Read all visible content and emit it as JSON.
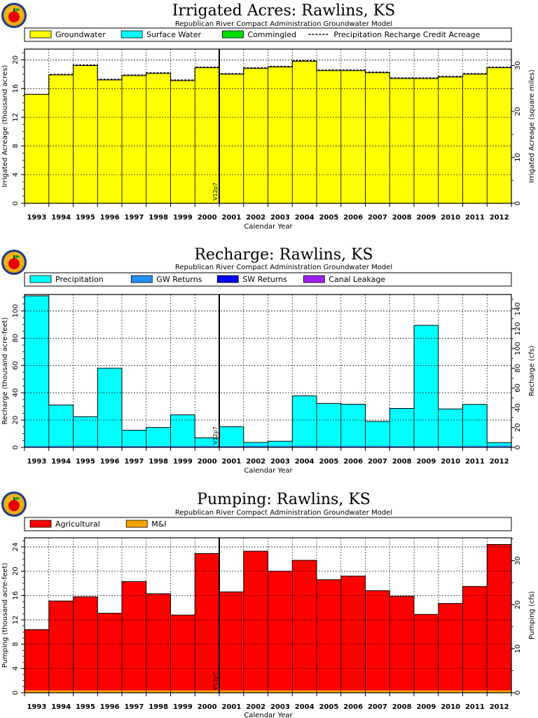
{
  "chart_data": [
    {
      "type": "area",
      "title": "Irrigated Acres: Rawlins, KS",
      "subtitle": "Republican River Compact Administration Groundwater Model",
      "xlabel": "Calendar Year",
      "ylabel": "Irrigated Acreage (thousand acres)",
      "ylabel_right": "Irrigated Acreage (square miles)",
      "ylim": [
        0,
        21.5
      ],
      "yticks": [
        0,
        4.0,
        8.0,
        12.0,
        16.0,
        20.0
      ],
      "yticks_right": [
        0,
        10.0,
        20.0,
        30.0
      ],
      "right_scale": 1.5625,
      "marker_label": "V12p7",
      "marker_year": 2000,
      "categories": [
        "1993",
        "1994",
        "1995",
        "1996",
        "1997",
        "1998",
        "1999",
        "2000",
        "2001",
        "2002",
        "2003",
        "2004",
        "2005",
        "2006",
        "2007",
        "2008",
        "2009",
        "2010",
        "2011",
        "2012"
      ],
      "legend": [
        {
          "label": "Groundwater",
          "color": "#ffff00",
          "kind": "box"
        },
        {
          "label": "Surface Water",
          "color": "#00ffff",
          "kind": "box"
        },
        {
          "label": "Commingled",
          "color": "#00dd00",
          "kind": "box"
        },
        {
          "label": "Precipitation Recharge Credit Acreage",
          "color": "#000000",
          "kind": "dash"
        }
      ],
      "series": [
        {
          "name": "Groundwater",
          "color": "#ffff00",
          "values": [
            15.2,
            17.9,
            19.2,
            17.2,
            17.8,
            18.1,
            17.1,
            18.9,
            18.0,
            18.8,
            19.0,
            19.8,
            18.5,
            18.5,
            18.2,
            17.4,
            17.4,
            17.6,
            18.0,
            18.9
          ]
        },
        {
          "name": "Surface Water",
          "color": "#00ffff",
          "values": [
            0,
            0,
            0,
            0,
            0,
            0,
            0,
            0,
            0,
            0,
            0,
            0,
            0,
            0,
            0,
            0,
            0,
            0,
            0,
            0
          ]
        },
        {
          "name": "Commingled",
          "color": "#00dd00",
          "values": [
            0,
            0,
            0,
            0,
            0,
            0,
            0,
            0,
            0,
            0,
            0,
            0,
            0,
            0,
            0,
            0,
            0,
            0,
            0,
            0
          ]
        }
      ],
      "line": {
        "name": "Precipitation Recharge Credit Acreage",
        "values": [
          15.2,
          18.0,
          19.3,
          17.3,
          17.9,
          18.2,
          17.2,
          19.0,
          18.1,
          18.9,
          19.1,
          19.9,
          18.6,
          18.6,
          18.3,
          17.5,
          17.5,
          17.7,
          18.1,
          19.0
        ]
      }
    },
    {
      "type": "area",
      "title": "Recharge: Rawlins, KS",
      "subtitle": "Republican River Compact Administration Groundwater Model",
      "xlabel": "Calendar Year",
      "ylabel": "Recharge (thousand acre-feet)",
      "ylabel_right": "Recharge (cfs)",
      "ylim": [
        0,
        112
      ],
      "yticks": [
        0,
        20.0,
        40.0,
        60.0,
        80.0,
        100
      ],
      "yticks_right": [
        0,
        20.0,
        40.0,
        60.0,
        80.0,
        100,
        120,
        140
      ],
      "right_scale": 1.3806,
      "marker_label": "V12p7",
      "marker_year": 2000,
      "categories": [
        "1993",
        "1994",
        "1995",
        "1996",
        "1997",
        "1998",
        "1999",
        "2000",
        "2001",
        "2002",
        "2003",
        "2004",
        "2005",
        "2006",
        "2007",
        "2008",
        "2009",
        "2010",
        "2011",
        "2012"
      ],
      "legend": [
        {
          "label": "Precipitation",
          "color": "#00ffff",
          "kind": "box"
        },
        {
          "label": "GW Returns",
          "color": "#1e90ff",
          "kind": "box"
        },
        {
          "label": "SW Returns",
          "color": "#0000ff",
          "kind": "box"
        },
        {
          "label": "Canal Leakage",
          "color": "#a020f0",
          "kind": "box"
        }
      ],
      "series": [
        {
          "name": "GW Returns",
          "color": "#1e90ff",
          "values": [
            1.0,
            1.2,
            1.3,
            1.1,
            1.1,
            1.1,
            1.0,
            1.2,
            1.1,
            1.3,
            1.2,
            1.3,
            1.2,
            1.2,
            1.2,
            1.1,
            1.0,
            1.1,
            1.2,
            1.3
          ]
        },
        {
          "name": "SW Returns",
          "color": "#0000ff",
          "values": [
            0,
            0,
            0,
            0,
            0,
            0,
            0,
            0,
            0,
            0,
            0,
            0,
            0,
            0,
            0,
            0,
            0,
            0,
            0,
            0
          ]
        },
        {
          "name": "Canal Leakage",
          "color": "#a020f0",
          "values": [
            0,
            0,
            0,
            0,
            0,
            0,
            0,
            0,
            0,
            0,
            0,
            0,
            0,
            0,
            0,
            0,
            0,
            0,
            0,
            0
          ]
        },
        {
          "name": "Precipitation",
          "color": "#00ffff",
          "values": [
            110.0,
            29.8,
            21.2,
            56.9,
            11.4,
            13.5,
            22.8,
            5.8,
            14.0,
            2.3,
            3.3,
            36.4,
            31.0,
            30.4,
            17.8,
            27.4,
            88.4,
            27.0,
            30.3,
            2.2
          ]
        }
      ]
    },
    {
      "type": "area",
      "title": "Pumping: Rawlins, KS",
      "subtitle": "Republican River Compact Administration Groundwater Model",
      "xlabel": "Calendar Year",
      "ylabel": "Pumping (thousand acre-feet)",
      "ylabel_right": "Pumping (cfs)",
      "ylim": [
        0,
        25.5
      ],
      "yticks": [
        0,
        4.0,
        8.0,
        12.0,
        16.0,
        20.0,
        24.0
      ],
      "yticks_right": [
        0,
        10.0,
        20.0,
        30.0
      ],
      "right_scale": 1.3806,
      "marker_label": "V12p7",
      "marker_year": 2000,
      "categories": [
        "1993",
        "1994",
        "1995",
        "1996",
        "1997",
        "1998",
        "1999",
        "2000",
        "2001",
        "2002",
        "2003",
        "2004",
        "2005",
        "2006",
        "2007",
        "2008",
        "2009",
        "2010",
        "2011",
        "2012"
      ],
      "legend": [
        {
          "label": "Agricultural",
          "color": "#ff0000",
          "kind": "box"
        },
        {
          "label": "M&I",
          "color": "#ffa500",
          "kind": "box"
        }
      ],
      "series": [
        {
          "name": "M&I",
          "color": "#ffa500",
          "values": [
            0.4,
            0.4,
            0.4,
            0.4,
            0.4,
            0.4,
            0.4,
            0.4,
            0.4,
            0.4,
            0.4,
            0.4,
            0.4,
            0.4,
            0.4,
            0.4,
            0.4,
            0.4,
            0.4,
            0.4
          ]
        },
        {
          "name": "Agricultural",
          "color": "#ff0000",
          "values": [
            10.0,
            14.7,
            15.4,
            12.7,
            17.9,
            15.9,
            12.4,
            22.5,
            16.2,
            22.9,
            19.6,
            21.4,
            18.2,
            18.8,
            16.4,
            15.5,
            12.5,
            14.3,
            17.1,
            24.0
          ]
        }
      ]
    }
  ]
}
